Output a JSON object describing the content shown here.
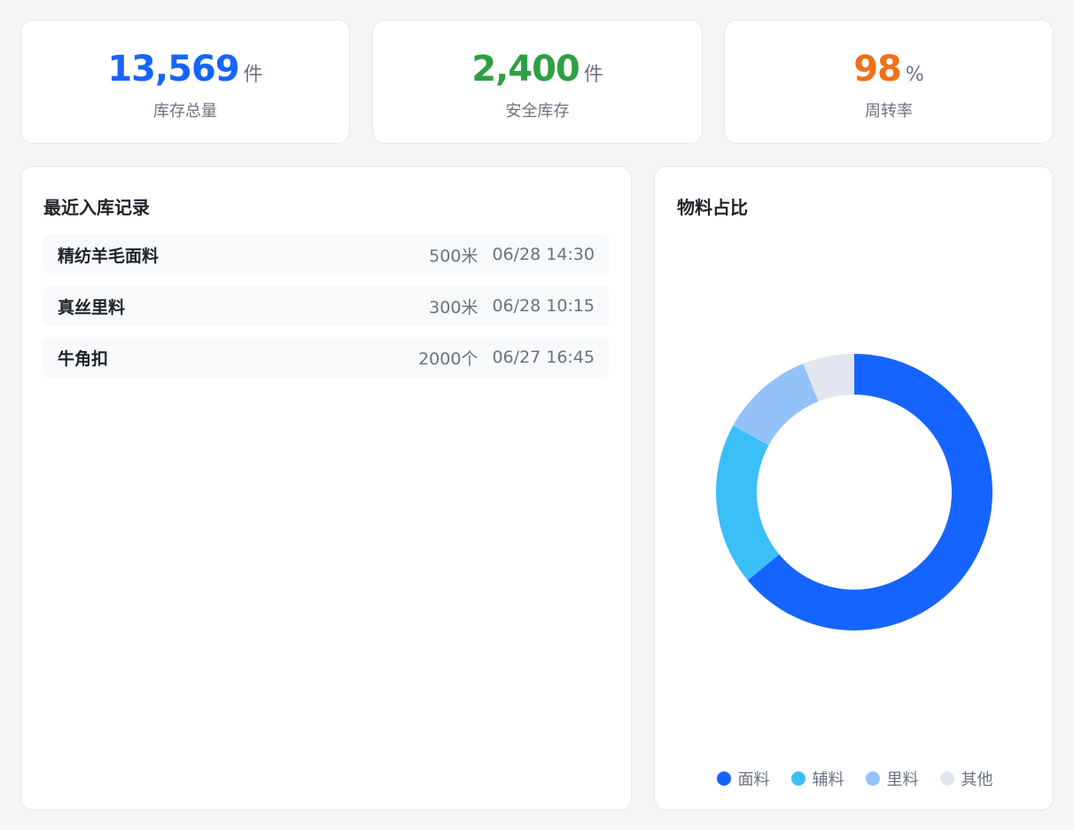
{
  "stats": [
    {
      "value": "13,569",
      "unit": "件",
      "label": "库存总量",
      "color": "#1664ff"
    },
    {
      "value": "2,400",
      "unit": "件",
      "label": "安全库存",
      "color": "#2ea043"
    },
    {
      "value": "98",
      "unit": "%",
      "label": "周转率",
      "color": "#f07117"
    }
  ],
  "records": {
    "title": "最近入库记录",
    "items": [
      {
        "name": "精纺羊毛面料",
        "qty": "500米",
        "time": "06/28 14:30"
      },
      {
        "name": "真丝里料",
        "qty": "300米",
        "time": "06/28 10:15"
      },
      {
        "name": "牛角扣",
        "qty": "2000个",
        "time": "06/27 16:45"
      }
    ]
  },
  "pie": {
    "title": "物料占比"
  },
  "chart_data": {
    "type": "pie",
    "categories": [
      "面料",
      "辅料",
      "里料",
      "其他"
    ],
    "values": [
      64,
      19,
      11,
      6
    ],
    "colors": [
      "#1664ff",
      "#3bbff7",
      "#93c2fb",
      "#e1e6ee"
    ],
    "legend": "bottom"
  }
}
